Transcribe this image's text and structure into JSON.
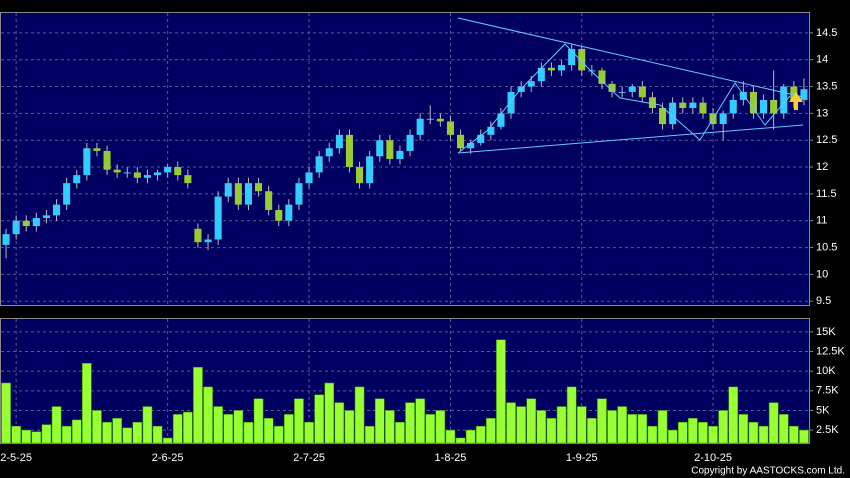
{
  "chart_data": [
    {
      "type": "candlestick",
      "categories": [
        null,
        "2-5-25",
        null,
        null,
        null,
        null,
        null,
        null,
        null,
        null,
        null,
        null,
        null,
        null,
        null,
        null,
        "2-6-25",
        null,
        null,
        null,
        null,
        null,
        null,
        null,
        null,
        null,
        null,
        null,
        null,
        null,
        "2-7-25",
        null,
        null,
        null,
        null,
        null,
        null,
        null,
        null,
        null,
        null,
        null,
        null,
        null,
        "1-8-25",
        null,
        null,
        null,
        null,
        null,
        null,
        null,
        null,
        null,
        null,
        null,
        null,
        "1-9-25",
        null,
        null,
        null,
        null,
        null,
        null,
        null,
        null,
        null,
        null,
        null,
        null,
        "2-10-25",
        null,
        null,
        null,
        null,
        null,
        null,
        null,
        null,
        null
      ],
      "open": [
        10.55,
        10.75,
        11.0,
        10.9,
        11.05,
        11.1,
        11.3,
        11.7,
        11.85,
        12.35,
        12.3,
        11.95,
        11.9,
        11.9,
        11.8,
        11.85,
        11.9,
        12.0,
        11.85,
        10.85,
        10.6,
        10.65,
        11.45,
        11.7,
        11.3,
        11.7,
        11.55,
        11.2,
        11.0,
        11.3,
        11.7,
        11.9,
        12.2,
        12.35,
        12.6,
        12.0,
        11.7,
        12.2,
        12.5,
        12.15,
        12.3,
        12.6,
        12.9,
        12.9,
        12.85,
        12.6,
        12.35,
        12.45,
        12.6,
        12.75,
        13.0,
        13.4,
        13.5,
        13.6,
        13.85,
        13.8,
        13.9,
        14.2,
        13.8,
        13.8,
        13.55,
        13.4,
        13.4,
        13.5,
        13.3,
        13.1,
        12.8,
        13.2,
        13.1,
        13.2,
        13.0,
        12.8,
        13.0,
        13.25,
        13.4,
        13.0,
        13.25,
        13.0,
        13.5,
        13.25
      ],
      "high": [
        10.85,
        11.1,
        11.1,
        11.15,
        11.2,
        11.4,
        11.8,
        11.95,
        12.45,
        12.45,
        12.4,
        12.05,
        12.0,
        12.0,
        11.95,
        11.95,
        12.05,
        12.1,
        11.95,
        10.95,
        10.75,
        11.55,
        11.8,
        11.8,
        11.8,
        11.8,
        11.65,
        11.3,
        11.4,
        11.8,
        12.0,
        12.3,
        12.45,
        12.7,
        12.7,
        12.1,
        12.3,
        12.6,
        12.6,
        12.4,
        12.7,
        13.0,
        13.15,
        13.0,
        12.95,
        12.7,
        12.5,
        12.7,
        12.85,
        13.1,
        13.5,
        13.6,
        13.7,
        13.95,
        13.95,
        14.0,
        14.3,
        14.25,
        13.9,
        13.85,
        13.6,
        13.5,
        13.55,
        13.6,
        13.4,
        13.2,
        13.3,
        13.3,
        13.3,
        13.3,
        13.1,
        13.05,
        13.35,
        13.6,
        13.5,
        13.35,
        13.8,
        13.55,
        13.6,
        13.65
      ],
      "low": [
        10.3,
        10.65,
        10.8,
        10.8,
        10.95,
        11.0,
        11.2,
        11.6,
        11.75,
        12.2,
        11.85,
        11.8,
        11.8,
        11.7,
        11.7,
        11.75,
        11.8,
        11.75,
        11.6,
        10.5,
        10.45,
        10.55,
        11.35,
        11.2,
        11.2,
        11.45,
        11.1,
        10.9,
        10.9,
        11.2,
        11.6,
        11.8,
        12.1,
        12.25,
        11.9,
        11.6,
        11.6,
        12.1,
        12.05,
        12.05,
        12.2,
        12.5,
        12.8,
        12.75,
        12.5,
        12.3,
        12.25,
        12.4,
        12.5,
        12.7,
        12.9,
        13.3,
        13.4,
        13.5,
        13.7,
        13.7,
        13.8,
        13.7,
        13.7,
        13.45,
        13.3,
        13.3,
        13.3,
        13.2,
        13.0,
        12.7,
        12.7,
        13.0,
        13.0,
        12.9,
        12.7,
        12.5,
        12.9,
        13.15,
        12.9,
        12.9,
        12.7,
        12.9,
        13.1,
        13.15
      ],
      "close": [
        10.75,
        11.0,
        10.9,
        11.05,
        11.1,
        11.3,
        11.7,
        11.85,
        12.35,
        12.3,
        11.95,
        11.9,
        11.9,
        11.8,
        11.85,
        11.9,
        12.0,
        11.85,
        11.7,
        10.6,
        10.65,
        11.45,
        11.7,
        11.3,
        11.7,
        11.55,
        11.2,
        11.0,
        11.3,
        11.7,
        11.9,
        12.2,
        12.35,
        12.6,
        12.0,
        11.7,
        12.2,
        12.5,
        12.15,
        12.3,
        12.6,
        12.9,
        12.9,
        12.85,
        12.6,
        12.35,
        12.45,
        12.6,
        12.75,
        13.0,
        13.4,
        13.5,
        13.6,
        13.85,
        13.8,
        13.9,
        14.2,
        13.8,
        13.8,
        13.55,
        13.4,
        13.4,
        13.5,
        13.3,
        13.1,
        12.8,
        13.2,
        13.1,
        13.2,
        13.0,
        12.8,
        13.0,
        13.25,
        13.4,
        13.0,
        13.25,
        13.0,
        13.5,
        13.25,
        13.45
      ],
      "up_color": "#33ccff",
      "down_color": "#99cc33",
      "ylim": [
        9.43,
        14.87
      ],
      "yticks": [
        9.5,
        10,
        10.5,
        11,
        11.5,
        12,
        12.5,
        13,
        13.5,
        14,
        14.5
      ],
      "grid": true
    },
    {
      "type": "bar",
      "values": [
        8500,
        3000,
        2500,
        2300,
        3200,
        5500,
        3000,
        3800,
        11000,
        5000,
        3500,
        4000,
        2800,
        3500,
        5500,
        3000,
        1500,
        4500,
        4800,
        10500,
        8000,
        5500,
        4500,
        5000,
        3500,
        6500,
        4000,
        3000,
        4500,
        6500,
        3500,
        7000,
        8500,
        6000,
        5000,
        8000,
        3000,
        6500,
        5000,
        3500,
        6000,
        6500,
        4500,
        5000,
        2500,
        1500,
        2500,
        3000,
        4000,
        14000,
        6000,
        5500,
        6500,
        5000,
        4000,
        5500,
        8000,
        5500,
        4000,
        6500,
        5000,
        5500,
        4500,
        4500,
        3000,
        5000,
        2500,
        3500,
        4000,
        3500,
        3000,
        5000,
        8000,
        4500,
        3500,
        3000,
        6000,
        4500,
        3000,
        2500
      ],
      "color": "#99ff33",
      "ylim": [
        860,
        16640
      ],
      "yticks": [
        {
          "value": 2500,
          "label": "2.5K"
        },
        {
          "value": 5000,
          "label": "5K"
        },
        {
          "value": 7500,
          "label": "7.5K"
        },
        {
          "value": 10000,
          "label": "10K"
        },
        {
          "value": 12500,
          "label": "12.5K"
        },
        {
          "value": 15000,
          "label": "15K"
        }
      ],
      "grid": true,
      "copyright": "Copyright by AASTOCKS.com Ltd."
    }
  ]
}
